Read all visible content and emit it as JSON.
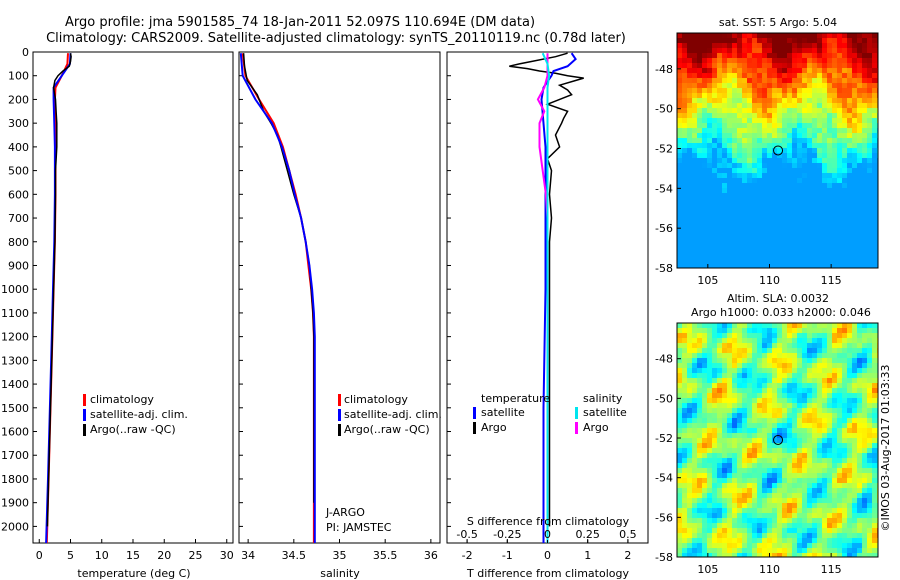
{
  "header": {
    "line1": "Argo profile: jma 5901585_74 18-Jan-2011 52.097S 110.694E (DM data)",
    "line2": "Climatology: CARS2009. Satellite-adjusted climatology: synTS_20110119.nc (0.78d later)"
  },
  "colors": {
    "climatology": "#ff0000",
    "satellite": "#0000ff",
    "argo": "#000000",
    "sal_satellite": "#00e5ee",
    "sal_argo": "#ff00ff"
  },
  "chart_data": [
    {
      "type": "line",
      "panel": "temperature",
      "title": "",
      "xlabel": "temperature (deg C)",
      "ylabel": "",
      "xlim": [
        -1,
        31
      ],
      "ylim": [
        2070,
        0
      ],
      "xticks": [
        "0",
        "5",
        "10",
        "15",
        "20",
        "25",
        "30"
      ],
      "yticks": [
        "0",
        "100",
        "200",
        "300",
        "400",
        "500",
        "600",
        "700",
        "800",
        "900",
        "1000",
        "1100",
        "1200",
        "1300",
        "1400",
        "1500",
        "1600",
        "1700",
        "1800",
        "1900",
        "2000"
      ],
      "legend": [
        "climatology",
        "satellite-adj. clim.",
        "Argo(..raw -QC)"
      ],
      "series": [
        {
          "name": "climatology",
          "depth": [
            5,
            50,
            100,
            150,
            200,
            300,
            400,
            600,
            800,
            1000,
            1200,
            1500,
            1800,
            2070
          ],
          "values": [
            4.6,
            4.5,
            3.6,
            2.6,
            2.5,
            2.6,
            2.6,
            2.6,
            2.5,
            2.3,
            2.1,
            1.8,
            1.5,
            1.2
          ]
        },
        {
          "name": "satellite-adj. clim.",
          "depth": [
            5,
            50,
            100,
            150,
            200,
            300,
            400,
            600,
            800,
            1000,
            1200,
            1500,
            1800,
            2070
          ],
          "values": [
            5.0,
            4.9,
            3.6,
            2.3,
            2.3,
            2.4,
            2.5,
            2.5,
            2.4,
            2.2,
            2.0,
            1.7,
            1.4,
            1.1
          ]
        },
        {
          "name": "Argo(..raw -QC)",
          "depth": [
            5,
            20,
            40,
            60,
            80,
            100,
            120,
            150,
            200,
            250,
            300,
            400,
            500,
            600,
            800,
            1000,
            1200,
            1500,
            1800,
            2000
          ],
          "values": [
            5.0,
            5.1,
            5.0,
            4.8,
            3.8,
            3.0,
            2.5,
            2.3,
            2.6,
            2.7,
            2.8,
            2.8,
            2.6,
            2.6,
            2.5,
            2.3,
            2.1,
            1.8,
            1.5,
            1.3
          ]
        }
      ]
    },
    {
      "type": "line",
      "panel": "salinity",
      "xlabel": "salinity",
      "xlim": [
        33.9,
        36.1
      ],
      "ylim": [
        2070,
        0
      ],
      "xticks": [
        "34",
        "34.5",
        "35",
        "35.5",
        "36"
      ],
      "legend": [
        "climatology",
        "satellite-adj. clim.",
        "Argo(..raw -QC)"
      ],
      "annotation": [
        "J-ARGO",
        "PI: JAMSTEC"
      ],
      "series": [
        {
          "name": "climatology",
          "depth": [
            5,
            100,
            200,
            300,
            400,
            500,
            600,
            700,
            800,
            900,
            1000,
            1100,
            1200,
            1300,
            1500,
            2070
          ],
          "values": [
            33.94,
            33.97,
            34.12,
            34.28,
            34.38,
            34.45,
            34.52,
            34.58,
            34.63,
            34.66,
            34.69,
            34.71,
            34.72,
            34.72,
            34.72,
            34.72
          ]
        },
        {
          "name": "satellite-adj. clim.",
          "depth": [
            5,
            100,
            200,
            300,
            400,
            500,
            600,
            700,
            800,
            900,
            1000,
            1100,
            1200,
            1300,
            1500,
            2070
          ],
          "values": [
            33.92,
            33.94,
            34.08,
            34.26,
            34.37,
            34.45,
            34.51,
            34.58,
            34.63,
            34.67,
            34.7,
            34.72,
            34.73,
            34.73,
            34.73,
            34.73
          ]
        },
        {
          "name": "Argo(..raw -QC)",
          "depth": [
            5,
            60,
            120,
            180,
            250,
            300,
            350,
            400,
            500,
            600,
            700,
            800,
            900,
            1000,
            1100,
            1200,
            1500,
            1900
          ],
          "values": [
            33.95,
            33.96,
            33.99,
            34.1,
            34.17,
            34.25,
            34.32,
            34.36,
            34.43,
            34.5,
            34.58,
            34.63,
            34.67,
            34.69,
            34.71,
            34.72,
            34.72,
            34.72
          ]
        }
      ]
    },
    {
      "type": "line",
      "panel": "difference",
      "xlabel": "T difference from climatology",
      "xlabel2": "S difference from climatology",
      "xlim": [
        -2.5,
        2.5
      ],
      "ylim": [
        2070,
        0
      ],
      "xticks": [
        "-2",
        "-1",
        "0",
        "1",
        "2"
      ],
      "xticks2": [
        "-0.5",
        "-0.25",
        "0",
        "0.25",
        "0.5"
      ],
      "legend_temperature": [
        "temperature",
        "satellite",
        "Argo"
      ],
      "legend_salinity": [
        "salinity",
        "satellite",
        "Argo"
      ],
      "series": [
        {
          "name": "T satellite",
          "depth": [
            5,
            30,
            60,
            80,
            100,
            150,
            200,
            300,
            400,
            600,
            800,
            1000,
            1500,
            2070
          ],
          "values": [
            0.6,
            0.7,
            0.5,
            0.15,
            0.1,
            -0.1,
            -0.15,
            -0.1,
            -0.05,
            -0.05,
            -0.05,
            -0.05,
            -0.1,
            -0.1
          ]
        },
        {
          "name": "T Argo",
          "depth": [
            5,
            20,
            40,
            50,
            60,
            70,
            80,
            90,
            100,
            110,
            120,
            140,
            160,
            180,
            200,
            220,
            250,
            280,
            300,
            350,
            400,
            450,
            500,
            600,
            700,
            800,
            1000,
            1300,
            1600,
            2000
          ],
          "values": [
            0.5,
            0.2,
            -0.4,
            -0.7,
            -0.95,
            -0.5,
            -0.2,
            0.2,
            0.5,
            0.9,
            0.7,
            0.3,
            0.5,
            0.6,
            0.3,
            0.0,
            0.5,
            0.4,
            0.35,
            0.2,
            0.3,
            0.0,
            0.1,
            0.05,
            0.1,
            0.05,
            0.05,
            0.05,
            0.05,
            0.05
          ]
        },
        {
          "name": "S satellite",
          "depth": [
            5,
            50,
            100,
            150,
            200,
            300,
            500,
            800,
            1200,
            1600,
            2070
          ],
          "values": [
            -0.03,
            0.0,
            0.01,
            0.0,
            0.0,
            0.0,
            0.0,
            0.0,
            0.0,
            0.0,
            0.0
          ]
        },
        {
          "name": "S Argo",
          "depth": [
            5,
            50,
            100,
            150,
            200,
            250,
            300,
            400,
            500,
            600,
            700,
            800,
            1000,
            1200,
            1500,
            1900
          ],
          "values": [
            0.0,
            0.0,
            0.0,
            -0.02,
            -0.06,
            -0.02,
            -0.05,
            -0.05,
            -0.03,
            -0.01,
            0.0,
            0.0,
            0.0,
            0.0,
            0.0,
            0.0
          ]
        }
      ]
    },
    {
      "type": "heatmap",
      "panel": "sst",
      "title": "sat. SST: 5  Argo: 5.04",
      "xlim": [
        102.5,
        118.8
      ],
      "ylim": [
        -58,
        -46.2
      ],
      "xticks": [
        "105",
        "110",
        "115"
      ],
      "yticks": [
        "-48",
        "-50",
        "-52",
        "-54",
        "-56",
        "-58"
      ],
      "marker": {
        "lon": 110.694,
        "lat": -52.097
      }
    },
    {
      "type": "heatmap",
      "panel": "sla",
      "title": "Altim. SLA: 0.0032",
      "subtitle": "Argo h1000: 0.033 h2000: 0.046",
      "xlim": [
        102.5,
        118.8
      ],
      "ylim": [
        -58,
        -46.2
      ],
      "xticks": [
        "105",
        "110",
        "115"
      ],
      "yticks": [
        "-48",
        "-50",
        "-52",
        "-54",
        "-56",
        "-58"
      ],
      "marker": {
        "lon": 110.694,
        "lat": -52.097
      }
    }
  ],
  "footer": {
    "stamp": "©IMOS 03-Aug-2017 01:03:33"
  }
}
